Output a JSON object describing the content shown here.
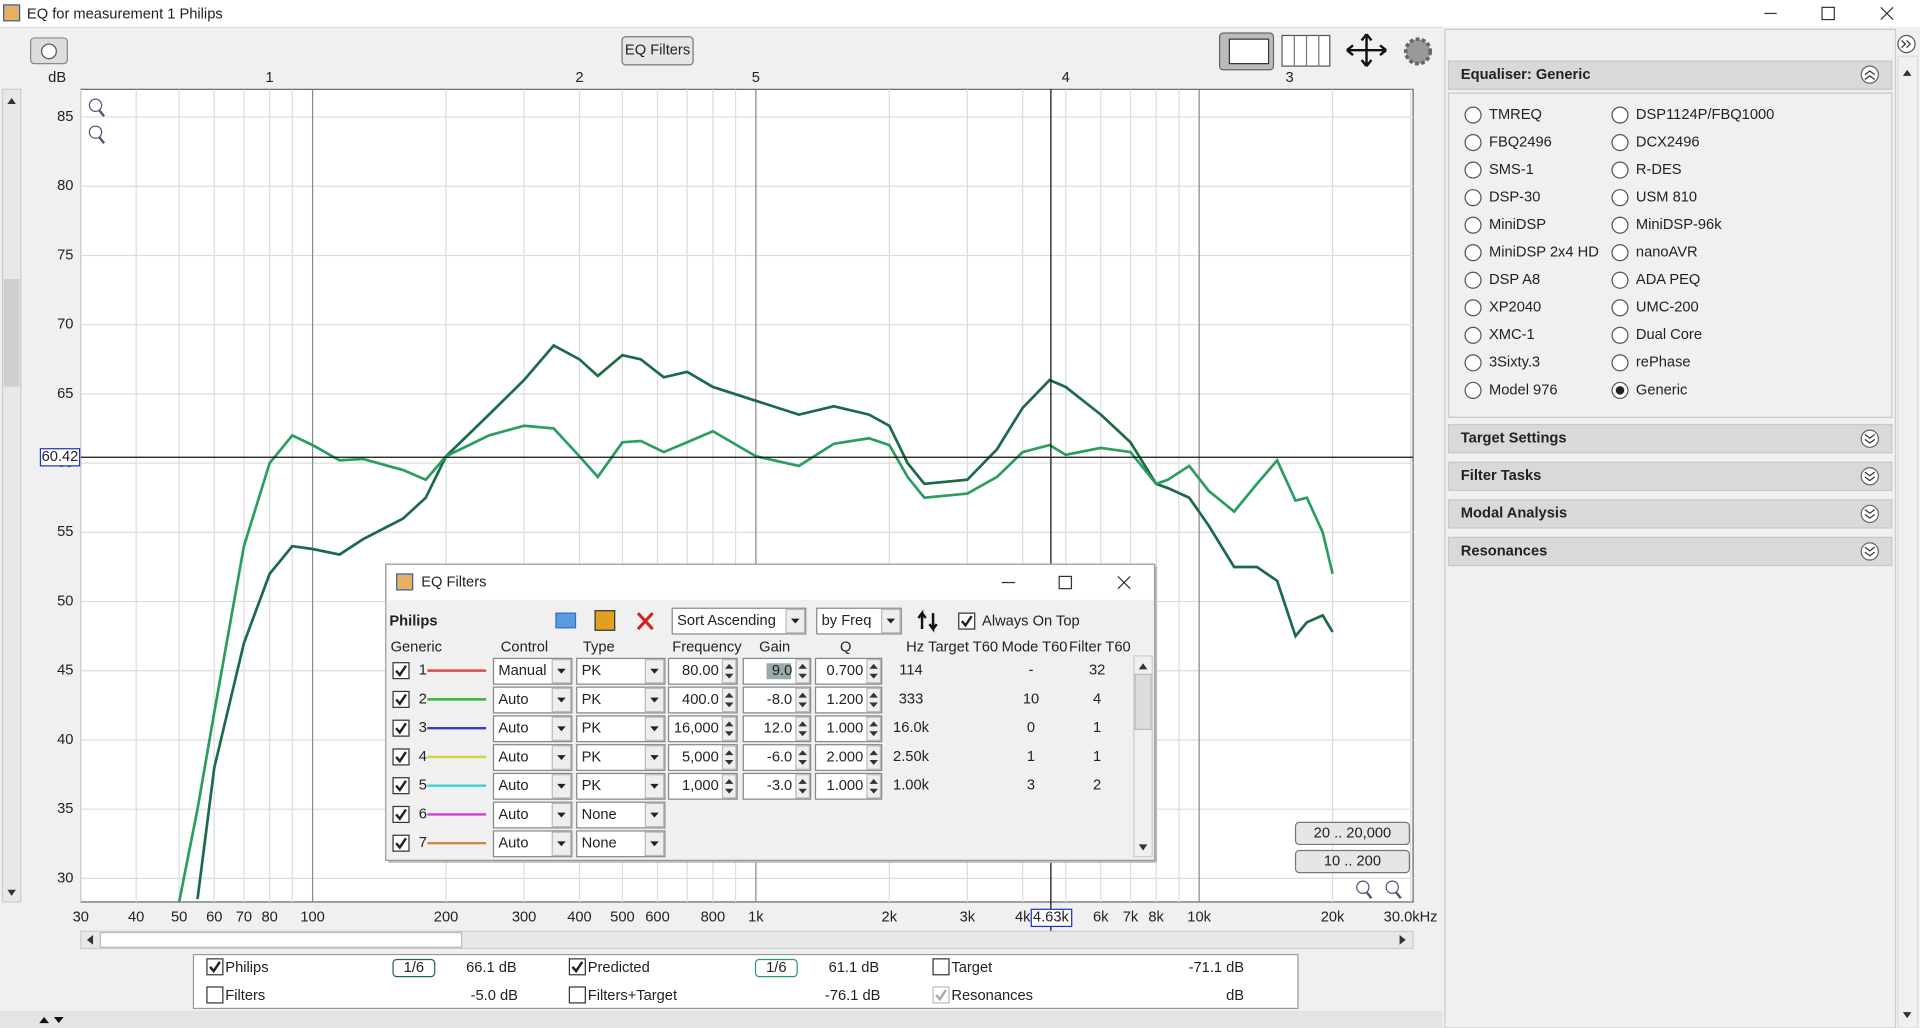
{
  "window": {
    "title": "EQ for measurement 1 Philips"
  },
  "toolbar": {
    "eq_filters": "EQ Filters"
  },
  "chart_data": {
    "type": "line",
    "y_unit": "dB",
    "x_scale": "log",
    "grid": true,
    "xlim": [
      30,
      30000
    ],
    "ylim": [
      28.3,
      87
    ],
    "yticks": [
      30,
      35,
      40,
      45,
      50,
      55,
      60,
      65,
      70,
      75,
      80,
      85
    ],
    "xticks": [
      30,
      40,
      50,
      60,
      70,
      80,
      100,
      200,
      300,
      400,
      500,
      600,
      800,
      {
        "value": 1000,
        "label": "1k"
      },
      {
        "value": 2000,
        "label": "2k"
      },
      {
        "value": 3000,
        "label": "3k"
      },
      {
        "value": 4000,
        "label": "4k"
      },
      {
        "value": 6000,
        "label": "6k"
      },
      {
        "value": 7000,
        "label": "7k"
      },
      {
        "value": 8000,
        "label": "8k"
      },
      {
        "value": 10000,
        "label": "10k"
      },
      {
        "value": 20000,
        "label": "20k"
      },
      {
        "value": 30000,
        "label": "30.0kHz"
      }
    ],
    "x_minor_grid": [
      90,
      700,
      900,
      5000,
      9000
    ],
    "x": [
      50,
      55,
      60,
      70,
      80,
      90,
      100,
      115,
      130,
      160,
      180,
      200,
      250,
      300,
      350,
      400,
      440,
      500,
      550,
      620,
      700,
      800,
      1000,
      1250,
      1500,
      1800,
      2000,
      2200,
      2400,
      3000,
      3500,
      4000,
      4600,
      5000,
      6000,
      7000,
      8000,
      8500,
      9500,
      10500,
      12000,
      13500,
      15000,
      16500,
      17500,
      19000,
      20000
    ],
    "series": [
      {
        "name": "Philips",
        "color": "#1b6b45",
        "values": [
          null,
          28.5,
          38,
          47,
          52,
          54,
          53.8,
          53.4,
          54.5,
          56,
          57.5,
          60.5,
          63.5,
          66,
          68.5,
          67.5,
          66.3,
          67.8,
          67.5,
          66.2,
          66.6,
          65.5,
          64.5,
          63.5,
          64.1,
          63.5,
          62.7,
          60,
          58.5,
          58.8,
          61,
          64,
          66,
          65.5,
          63.5,
          61.5,
          58.5,
          58.2,
          57.5,
          55.5,
          52.5,
          52.5,
          51.5,
          47.5,
          48.5,
          49,
          47.8
        ]
      },
      {
        "name": "Predicted",
        "color": "#2a9e5e",
        "values": [
          28.3,
          35,
          42,
          54,
          60,
          62,
          61.3,
          60.2,
          60.3,
          59.5,
          58.8,
          60.5,
          62,
          62.7,
          62.5,
          60.5,
          59,
          61.5,
          61.6,
          60.8,
          61.5,
          62.3,
          60.5,
          59.8,
          61.4,
          61.8,
          61.3,
          59,
          57.5,
          57.8,
          59,
          60.8,
          61.3,
          60.6,
          61.1,
          60.8,
          58.5,
          58.8,
          59.8,
          58,
          56.5,
          58.5,
          60.2,
          57.3,
          57.5,
          55,
          52
        ]
      }
    ],
    "filter_markers": [
      {
        "label": "1",
        "x": 80,
        "color": "#22a022"
      },
      {
        "label": "2",
        "x": 400,
        "color": "#2030d0"
      },
      {
        "label": "5",
        "x": 1000,
        "color": "#2030d0"
      },
      {
        "label": "4",
        "x": 5000,
        "color": "#2030d0"
      },
      {
        "label": "3",
        "x": 16000,
        "color": "#2030d0"
      }
    ],
    "cursor": {
      "x": 4630,
      "x_label": "4.63k",
      "y": 60.42
    },
    "range_buttons": [
      "20 .. 20,000",
      "10 .. 200"
    ]
  },
  "side_panel": {
    "title": "Equaliser: Generic",
    "selected": "Generic",
    "columns": [
      [
        "TMREQ",
        "FBQ2496",
        "SMS-1",
        "DSP-30",
        "MiniDSP",
        "MiniDSP 2x4 HD",
        "DSP A8",
        "XP2040",
        "XMC-1",
        "3Sixty.3",
        "Model 976"
      ],
      [
        "DSP1124P/FBQ1000",
        "DCX2496",
        "R-DES",
        "USM 810",
        "MiniDSP-96k",
        "nanoAVR",
        "ADA PEQ",
        "UMC-200",
        "Dual Core",
        "rePhase",
        "Generic"
      ]
    ],
    "sections": [
      "Target Settings",
      "Filter Tasks",
      "Modal Analysis",
      "Resonances"
    ]
  },
  "eq_dialog": {
    "title": "EQ Filters",
    "measurement": "Philips",
    "sort": "Sort Ascending",
    "sort_by": "by Freq",
    "always_on_top": "Always On Top",
    "headers": [
      "Generic",
      "Control",
      "Type",
      "Frequency",
      "Gain",
      "Q",
      "Hz",
      "Target T60",
      "Mode T60",
      "Filter T60"
    ],
    "rows": [
      {
        "n": "1",
        "color": "#d94a4a",
        "control": "Manual",
        "type": "PK",
        "frequency": "80.00",
        "gain": "9.0",
        "q": "0.700",
        "hz": "114",
        "mode_t60": "-",
        "filter_t60": "32"
      },
      {
        "n": "2",
        "color": "#33b533",
        "control": "Auto",
        "type": "PK",
        "frequency": "400.0",
        "gain": "-8.0",
        "q": "1.200",
        "hz": "333",
        "mode_t60": "10",
        "filter_t60": "4"
      },
      {
        "n": "3",
        "color": "#3a3ad0",
        "control": "Auto",
        "type": "PK",
        "frequency": "16,000",
        "gain": "12.0",
        "q": "1.000",
        "hz": "16.0k",
        "mode_t60": "0",
        "filter_t60": "1"
      },
      {
        "n": "4",
        "color": "#d8d040",
        "control": "Auto",
        "type": "PK",
        "frequency": "5,000",
        "gain": "-6.0",
        "q": "2.000",
        "hz": "2.50k",
        "mode_t60": "1",
        "filter_t60": "1"
      },
      {
        "n": "5",
        "color": "#40d0d0",
        "control": "Auto",
        "type": "PK",
        "frequency": "1,000",
        "gain": "-3.0",
        "q": "1.000",
        "hz": "1.00k",
        "mode_t60": "3",
        "filter_t60": "2"
      },
      {
        "n": "6",
        "color": "#d040d0",
        "control": "Auto",
        "type": "None"
      },
      {
        "n": "7",
        "color": "#d08a40",
        "control": "Auto",
        "type": "None"
      }
    ]
  },
  "legend_bar": {
    "series_items": [
      {
        "checked": true,
        "smoothing": "1/6",
        "level": "66.1 dB"
      },
      {
        "checked": true,
        "smoothing": "1/6",
        "level": "61.1 dB"
      }
    ],
    "other_items": [
      {
        "label": "Target",
        "level": "-71.1 dB",
        "color": "#2020d0",
        "checked": false
      },
      {
        "label": "Filters",
        "level": "-5.0 dB",
        "color": "#28a8c8",
        "checked": false
      },
      {
        "label": "Filters+Target",
        "level": "-76.1 dB",
        "color": "#3050a0",
        "checked": false
      },
      {
        "label": "Resonances",
        "level": "dB",
        "color": "#a0a0a0",
        "checked": true
      }
    ]
  }
}
